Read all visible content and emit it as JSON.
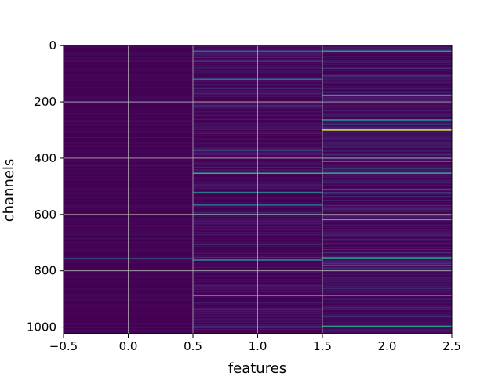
{
  "chart_data": {
    "type": "heatmap",
    "title": "",
    "xlabel": "features",
    "ylabel": "channels",
    "xlim": [
      -0.5,
      2.5
    ],
    "ylim": [
      1023.5,
      -0.5
    ],
    "x_ticks": [
      -0.5,
      0.0,
      0.5,
      1.0,
      1.5,
      2.0,
      2.5
    ],
    "x_tick_labels": [
      "−0.5",
      "0.0",
      "0.5",
      "1.0",
      "1.5",
      "2.0",
      "2.5"
    ],
    "y_ticks": [
      0,
      200,
      400,
      600,
      800,
      1000
    ],
    "y_tick_labels": [
      "0",
      "200",
      "400",
      "600",
      "800",
      "1000"
    ],
    "grid": true,
    "colormap": "viridis",
    "features": [
      0,
      1,
      2
    ],
    "n_channels": 1024,
    "value_range": [
      0,
      1
    ],
    "background_value": 0.0,
    "feature_noise_level": [
      0.05,
      0.12,
      0.17
    ],
    "notable_rows": [
      {
        "feature": 0,
        "channel": 755,
        "value": 0.3
      },
      {
        "feature": 1,
        "channel": 18,
        "value": 0.32
      },
      {
        "feature": 1,
        "channel": 118,
        "value": 0.35
      },
      {
        "feature": 1,
        "channel": 370,
        "value": 0.3
      },
      {
        "feature": 1,
        "channel": 452,
        "value": 0.62
      },
      {
        "feature": 1,
        "channel": 520,
        "value": 0.4
      },
      {
        "feature": 1,
        "channel": 565,
        "value": 0.35
      },
      {
        "feature": 1,
        "channel": 760,
        "value": 0.45
      },
      {
        "feature": 1,
        "channel": 885,
        "value": 0.75
      },
      {
        "feature": 2,
        "channel": 18,
        "value": 0.55
      },
      {
        "feature": 2,
        "channel": 175,
        "value": 0.55
      },
      {
        "feature": 2,
        "channel": 262,
        "value": 0.5
      },
      {
        "feature": 2,
        "channel": 298,
        "value": 0.95
      },
      {
        "feature": 2,
        "channel": 410,
        "value": 0.4
      },
      {
        "feature": 2,
        "channel": 452,
        "value": 0.6
      },
      {
        "feature": 2,
        "channel": 510,
        "value": 0.35
      },
      {
        "feature": 2,
        "channel": 615,
        "value": 0.92
      },
      {
        "feature": 2,
        "channel": 752,
        "value": 0.55
      },
      {
        "feature": 2,
        "channel": 780,
        "value": 0.4
      },
      {
        "feature": 2,
        "channel": 885,
        "value": 0.68
      },
      {
        "feature": 2,
        "channel": 995,
        "value": 0.55
      }
    ]
  },
  "colors": {
    "grid": "#b0b0b0",
    "axes": "#000000",
    "background": "#ffffff"
  }
}
